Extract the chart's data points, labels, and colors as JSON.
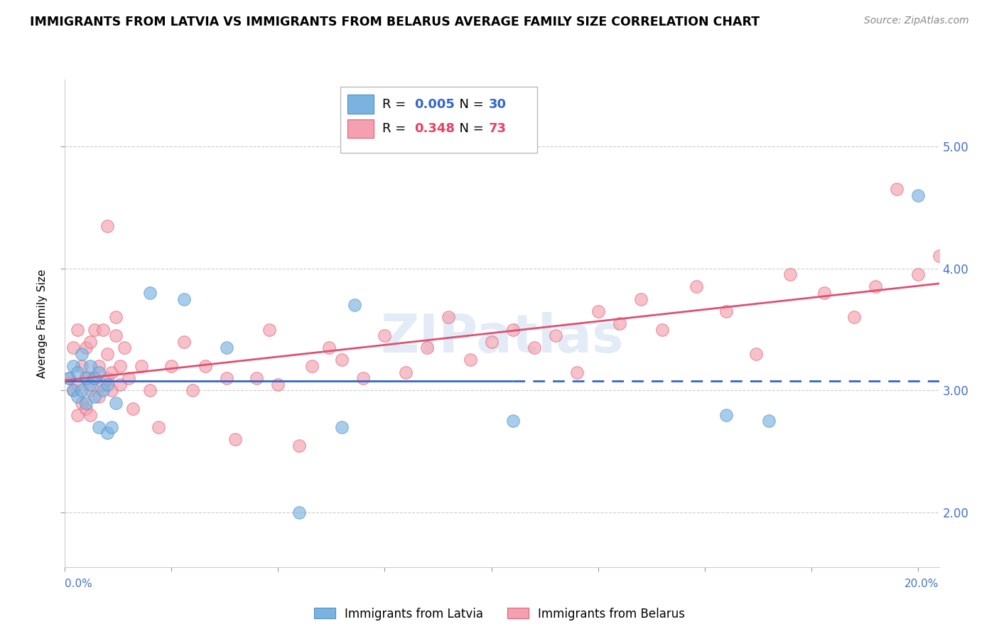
{
  "title": "IMMIGRANTS FROM LATVIA VS IMMIGRANTS FROM BELARUS AVERAGE FAMILY SIZE CORRELATION CHART",
  "source": "Source: ZipAtlas.com",
  "ylabel": "Average Family Size",
  "xlim": [
    0.0,
    0.205
  ],
  "ylim": [
    1.55,
    5.55
  ],
  "yticks": [
    2.0,
    3.0,
    4.0,
    5.0
  ],
  "background_color": "#ffffff",
  "latvia_R": "0.005",
  "latvia_N": "30",
  "belarus_R": "0.348",
  "belarus_N": "73",
  "latvia_color": "#7ab3e0",
  "latvia_edge": "#5090cc",
  "belarus_color": "#f4a0b0",
  "belarus_edge": "#e06070",
  "trend_latvia_color": "#3366cc",
  "trend_belarus_color": "#e05070",
  "latvia_x": [
    0.001,
    0.002,
    0.002,
    0.003,
    0.003,
    0.004,
    0.004,
    0.005,
    0.005,
    0.006,
    0.006,
    0.007,
    0.007,
    0.008,
    0.008,
    0.009,
    0.01,
    0.01,
    0.011,
    0.012,
    0.02,
    0.028,
    0.038,
    0.055,
    0.065,
    0.068,
    0.105,
    0.155,
    0.165,
    0.2
  ],
  "latvia_y": [
    3.1,
    3.2,
    3.0,
    3.15,
    2.95,
    3.3,
    3.0,
    3.1,
    2.9,
    3.2,
    3.05,
    3.1,
    2.95,
    3.15,
    2.7,
    3.0,
    2.65,
    3.05,
    2.7,
    2.9,
    3.8,
    3.75,
    3.35,
    2.0,
    2.7,
    3.7,
    2.75,
    2.8,
    2.75,
    4.6
  ],
  "belarus_x": [
    0.001,
    0.002,
    0.002,
    0.003,
    0.003,
    0.003,
    0.004,
    0.004,
    0.005,
    0.005,
    0.005,
    0.006,
    0.006,
    0.006,
    0.007,
    0.007,
    0.008,
    0.008,
    0.009,
    0.009,
    0.01,
    0.01,
    0.01,
    0.011,
    0.011,
    0.012,
    0.012,
    0.013,
    0.013,
    0.014,
    0.015,
    0.016,
    0.018,
    0.02,
    0.022,
    0.025,
    0.028,
    0.03,
    0.033,
    0.038,
    0.04,
    0.045,
    0.048,
    0.05,
    0.055,
    0.058,
    0.062,
    0.065,
    0.07,
    0.075,
    0.08,
    0.085,
    0.09,
    0.095,
    0.1,
    0.105,
    0.11,
    0.115,
    0.12,
    0.125,
    0.13,
    0.135,
    0.14,
    0.148,
    0.155,
    0.162,
    0.17,
    0.178,
    0.185,
    0.19,
    0.195,
    0.2,
    0.205
  ],
  "belarus_y": [
    3.1,
    3.35,
    3.0,
    2.8,
    3.05,
    3.5,
    3.2,
    2.9,
    3.1,
    2.85,
    3.35,
    3.4,
    2.8,
    3.0,
    3.5,
    3.1,
    2.95,
    3.2,
    3.05,
    3.5,
    3.1,
    4.35,
    3.3,
    3.0,
    3.15,
    3.45,
    3.6,
    3.2,
    3.05,
    3.35,
    3.1,
    2.85,
    3.2,
    3.0,
    2.7,
    3.2,
    3.4,
    3.0,
    3.2,
    3.1,
    2.6,
    3.1,
    3.5,
    3.05,
    2.55,
    3.2,
    3.35,
    3.25,
    3.1,
    3.45,
    3.15,
    3.35,
    3.6,
    3.25,
    3.4,
    3.5,
    3.35,
    3.45,
    3.15,
    3.65,
    3.55,
    3.75,
    3.5,
    3.85,
    3.65,
    3.3,
    3.95,
    3.8,
    3.6,
    3.85,
    4.65,
    3.95,
    4.1
  ]
}
